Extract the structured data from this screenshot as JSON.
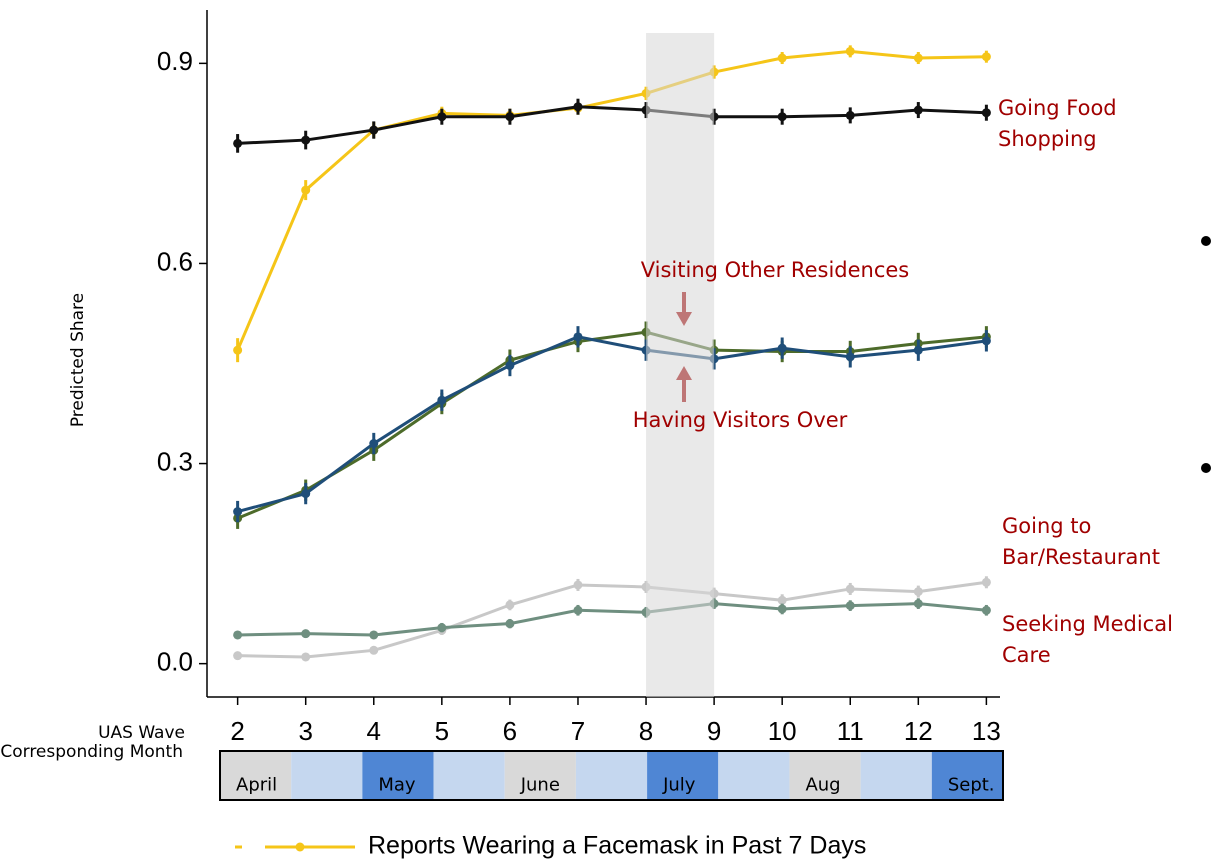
{
  "chart_data": {
    "type": "line",
    "y_label": "Predicted Share",
    "x_label": "UAS Wave",
    "x": [
      2,
      3,
      4,
      5,
      6,
      7,
      8,
      9,
      10,
      11,
      12,
      13
    ],
    "xlim": [
      1.55,
      13.2
    ],
    "ylim": [
      -0.05,
      0.98
    ],
    "yticks": [
      {
        "value": 0,
        "label": "0.0"
      },
      0.3,
      0.6,
      0.9
    ],
    "highlight": [
      8,
      9
    ],
    "series": [
      {
        "name": "Reports Wearing a Facemask in Past 7 Days",
        "color": "#f5c518",
        "values": [
          0.47,
          0.71,
          0.8,
          0.825,
          0.822,
          0.833,
          0.855,
          0.887,
          0.908,
          0.918,
          0.908,
          0.91
        ],
        "errors": [
          0.018,
          0.015,
          0.012,
          0.01,
          0.01,
          0.01,
          0.01,
          0.01,
          0.009,
          0.009,
          0.009,
          0.009
        ]
      },
      {
        "name": "Going Food Shopping",
        "color": "#111111",
        "values": [
          0.78,
          0.785,
          0.8,
          0.82,
          0.82,
          0.835,
          0.83,
          0.82,
          0.82,
          0.822,
          0.83,
          0.826
        ],
        "errors": [
          0.014,
          0.014,
          0.013,
          0.012,
          0.012,
          0.012,
          0.012,
          0.012,
          0.012,
          0.012,
          0.012,
          0.012
        ]
      },
      {
        "name": "Visiting Other Residences",
        "color": "#4d6b2a",
        "values": [
          0.218,
          0.26,
          0.32,
          0.39,
          0.455,
          0.483,
          0.497,
          0.47,
          0.468,
          0.468,
          0.48,
          0.49
        ],
        "errors": [
          0.016,
          0.016,
          0.016,
          0.016,
          0.016,
          0.016,
          0.016,
          0.016,
          0.016,
          0.016,
          0.016,
          0.016
        ]
      },
      {
        "name": "Having Visitors Over",
        "color": "#1f4e79",
        "values": [
          0.228,
          0.255,
          0.33,
          0.395,
          0.447,
          0.49,
          0.47,
          0.457,
          0.473,
          0.46,
          0.47,
          0.484
        ],
        "errors": [
          0.016,
          0.016,
          0.016,
          0.016,
          0.016,
          0.016,
          0.016,
          0.016,
          0.016,
          0.016,
          0.016,
          0.016
        ]
      },
      {
        "name": "Going to Bar/Restaurant",
        "color": "#c8c8c8",
        "values": [
          0.012,
          0.01,
          0.02,
          0.05,
          0.088,
          0.118,
          0.115,
          0.105,
          0.095,
          0.112,
          0.108,
          0.122
        ],
        "errors": [
          0.006,
          0.006,
          0.006,
          0.007,
          0.008,
          0.009,
          0.009,
          0.009,
          0.009,
          0.009,
          0.009,
          0.009
        ]
      },
      {
        "name": "Seeking Medical Care",
        "color": "#6f8f80",
        "values": [
          0.043,
          0.045,
          0.043,
          0.054,
          0.06,
          0.08,
          0.077,
          0.09,
          0.082,
          0.087,
          0.09,
          0.08
        ],
        "errors": [
          0.006,
          0.006,
          0.006,
          0.007,
          0.007,
          0.008,
          0.008,
          0.008,
          0.008,
          0.008,
          0.008,
          0.008
        ]
      }
    ],
    "months": {
      "title": "Corresponding Month",
      "labels": [
        "April",
        null,
        "May",
        null,
        "June",
        null,
        "July",
        null,
        "Aug",
        null,
        "Sept."
      ],
      "colors": [
        "#d9d9d9",
        "#c5d7ef",
        "#4f86d4",
        "#c5d7ef",
        "#d9d9d9",
        "#c5d7ef",
        "#4f86d4",
        "#c5d7ef",
        "#d9d9d9",
        "#c5d7ef",
        "#4f86d4"
      ]
    }
  }
}
